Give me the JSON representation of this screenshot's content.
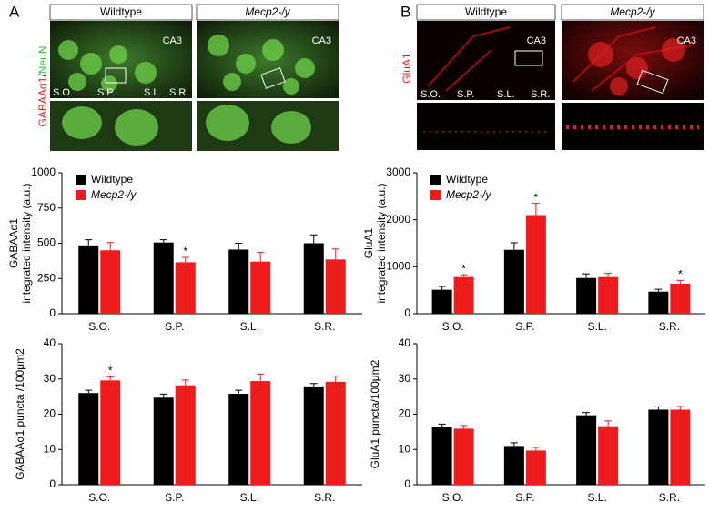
{
  "panels": [
    {
      "label": "A",
      "headers": [
        "Wildtype",
        "Mecp2-/y"
      ],
      "regions": [
        "CA3",
        "CA3"
      ],
      "layers": [
        "S.O.",
        "S.P.",
        "S.L.",
        "S.R."
      ],
      "stain": [
        "GABAAα1",
        "/",
        "NeuN"
      ]
    },
    {
      "label": "B",
      "headers": [
        "Wildtype",
        "Mecp2-/y"
      ],
      "regions": [
        "CA3",
        "CA3"
      ],
      "layers": [
        "S.O.",
        "S.P.",
        "S.L.",
        "S.R."
      ],
      "stain": [
        "GluA1"
      ]
    }
  ],
  "chart_data": [
    {
      "type": "bar",
      "ylabel": [
        "GABAAα1",
        "integrated intensity (a.u.)"
      ],
      "categories": [
        "S.O.",
        "S.P.",
        "S.L.",
        "S.R."
      ],
      "legend": "upper left",
      "series": [
        {
          "name": "Wildtype",
          "color": "#000000",
          "values": [
            485,
            505,
            455,
            500
          ],
          "errors": [
            40,
            20,
            45,
            60
          ],
          "markers": [
            null,
            null,
            null,
            null
          ]
        },
        {
          "name": "Mecp2-/y",
          "color": "#ee1c1c",
          "values": [
            450,
            365,
            370,
            385
          ],
          "errors": [
            55,
            35,
            65,
            75
          ],
          "markers": [
            null,
            "*",
            null,
            null
          ]
        }
      ],
      "ylim": [
        0,
        1000
      ],
      "yticks": [
        0,
        250,
        500,
        750,
        1000
      ]
    },
    {
      "type": "bar",
      "ylabel": [
        "GABAAα1 puncta /100μm2"
      ],
      "categories": [
        "S.O.",
        "S.P.",
        "S.L.",
        "S.R."
      ],
      "series": [
        {
          "name": null,
          "color": "#000000",
          "values": [
            26.0,
            24.7,
            25.8,
            27.9
          ],
          "errors": [
            0.8,
            1.0,
            1.0,
            0.8
          ],
          "markers": [
            null,
            null,
            null,
            null
          ]
        },
        {
          "name": null,
          "color": "#ee1c1c",
          "values": [
            29.6,
            28.2,
            29.4,
            29.2
          ],
          "errors": [
            1.0,
            1.5,
            2.0,
            1.6
          ],
          "markers": [
            "*",
            null,
            null,
            null
          ]
        }
      ],
      "ylim": [
        0,
        40
      ],
      "yticks": [
        0,
        10,
        20,
        30,
        40
      ]
    },
    {
      "type": "bar",
      "ylabel": [
        "GluA1",
        "integrated intensity (a.u.)"
      ],
      "categories": [
        "S.O.",
        "S.P.",
        "S.L.",
        "S.R."
      ],
      "legend": "upper left",
      "series": [
        {
          "name": "Wildtype",
          "color": "#000000",
          "values": [
            510,
            1360,
            760,
            470
          ],
          "errors": [
            70,
            150,
            90,
            50
          ],
          "markers": [
            null,
            null,
            null,
            null
          ]
        },
        {
          "name": "Mecp2-/y",
          "color": "#ee1c1c",
          "values": [
            780,
            2100,
            780,
            640
          ],
          "errors": [
            50,
            250,
            80,
            70
          ],
          "markers": [
            "*",
            "*",
            null,
            "*"
          ]
        }
      ],
      "ylim": [
        0,
        3000
      ],
      "yticks": [
        0,
        1000,
        2000,
        3000
      ]
    },
    {
      "type": "bar",
      "ylabel": [
        "GluA1 puncta/100μm2"
      ],
      "categories": [
        "S.O.",
        "S.P.",
        "S.L.",
        "S.R."
      ],
      "series": [
        {
          "name": null,
          "color": "#000000",
          "values": [
            16.3,
            11.0,
            19.7,
            21.3
          ],
          "errors": [
            0.9,
            0.9,
            0.8,
            0.8
          ],
          "markers": [
            null,
            null,
            null,
            null
          ]
        },
        {
          "name": null,
          "color": "#ee1c1c",
          "values": [
            15.9,
            9.7,
            16.6,
            21.3
          ],
          "errors": [
            0.9,
            0.9,
            1.5,
            0.9
          ],
          "markers": [
            null,
            null,
            null,
            null
          ]
        }
      ],
      "ylim": [
        0,
        40
      ],
      "yticks": [
        0,
        10,
        20,
        30,
        40
      ]
    }
  ]
}
